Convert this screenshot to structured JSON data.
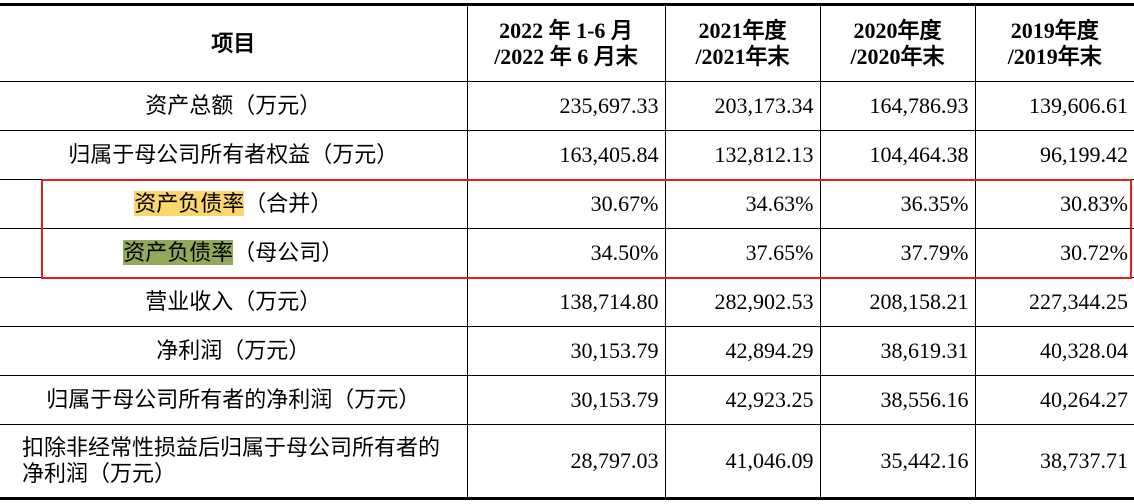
{
  "table": {
    "header": [
      "项目",
      [
        "2022 年 1-6 月",
        "/2022 年 6 月末"
      ],
      [
        "2021年度",
        "/2021年末"
      ],
      [
        "2020年度",
        "/2020年末"
      ],
      [
        "2019年度",
        "/2019年末"
      ]
    ],
    "rows": [
      {
        "label": "资产总额（万元）",
        "values": [
          "235,697.33",
          "203,173.34",
          "164,786.93",
          "139,606.61"
        ]
      },
      {
        "label": "归属于母公司所有者权益（万元）",
        "values": [
          "163,405.84",
          "132,812.13",
          "104,464.38",
          "96,199.42"
        ]
      },
      {
        "label": [
          "资产负债率",
          "（合并）"
        ],
        "values": [
          "30.67%",
          "34.63%",
          "36.35%",
          "30.83%"
        ]
      },
      {
        "label": [
          "资产负债率",
          "（母公司）"
        ],
        "values": [
          "34.50%",
          "37.65%",
          "37.79%",
          "30.72%"
        ]
      },
      {
        "label": "营业收入（万元）",
        "values": [
          "138,714.80",
          "282,902.53",
          "208,158.21",
          "227,344.25"
        ]
      },
      {
        "label": "净利润（万元）",
        "values": [
          "30,153.79",
          "42,894.29",
          "38,619.31",
          "40,328.04"
        ]
      },
      {
        "label": "归属于母公司所有者的净利润（万元）",
        "values": [
          "30,153.79",
          "42,923.25",
          "38,556.16",
          "40,264.27"
        ]
      },
      {
        "label": "扣除非经常性损益后归属于母公司所有者的净利润（万元）",
        "values": [
          "28,797.03",
          "41,046.09",
          "35,442.16",
          "38,737.71"
        ]
      }
    ]
  }
}
